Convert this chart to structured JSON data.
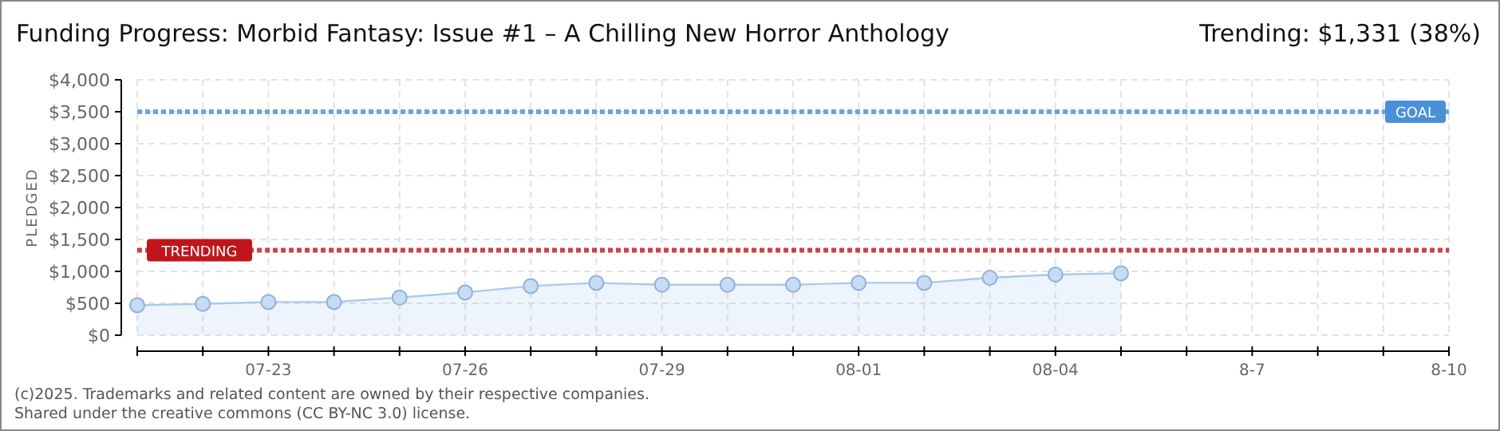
{
  "chart_data": {
    "type": "area",
    "title": "Funding Progress: Morbid Fantasy: Issue #1 – A Chilling New Horror Anthology",
    "subtitle": "Trending: $1,331 (38%)",
    "ylabel": "PLEDGED",
    "x": [
      "2025-07-21",
      "2025-07-22",
      "2025-07-23",
      "2025-07-24",
      "2025-07-25",
      "2025-07-26",
      "2025-07-27",
      "2025-07-28",
      "2025-07-29",
      "2025-07-30",
      "2025-07-31",
      "2025-08-01",
      "2025-08-02",
      "2025-08-03",
      "2025-08-04",
      "2025-08-05"
    ],
    "series": [
      {
        "color": "#a9c9ee",
        "values": [
          470,
          490,
          520,
          520,
          590,
          670,
          770,
          820,
          790,
          790,
          790,
          820,
          820,
          900,
          950,
          970
        ]
      }
    ],
    "xlim": [
      "2025-07-21",
      "2025-08-10"
    ],
    "xticks": [
      {
        "value": "2025-07-21",
        "label": null
      },
      {
        "value": "2025-07-22",
        "label": null
      },
      {
        "value": "2025-07-23",
        "label": "07-23"
      },
      {
        "value": "2025-07-24",
        "label": null
      },
      {
        "value": "2025-07-25",
        "label": null
      },
      {
        "value": "2025-07-26",
        "label": "07-26"
      },
      {
        "value": "2025-07-27",
        "label": null
      },
      {
        "value": "2025-07-28",
        "label": null
      },
      {
        "value": "2025-07-29",
        "label": "07-29"
      },
      {
        "value": "2025-07-30",
        "label": null
      },
      {
        "value": "2025-07-31",
        "label": null
      },
      {
        "value": "2025-08-01",
        "label": "08-01"
      },
      {
        "value": "2025-08-02",
        "label": null
      },
      {
        "value": "2025-08-03",
        "label": null
      },
      {
        "value": "2025-08-04",
        "label": "08-04"
      },
      {
        "value": "2025-08-05",
        "label": null
      },
      {
        "value": "2025-08-06",
        "label": null
      },
      {
        "value": "2025-08-07",
        "label": "8-7"
      },
      {
        "value": "2025-08-08",
        "label": null
      },
      {
        "value": "2025-08-09",
        "label": null
      },
      {
        "value": "2025-08-10",
        "label": "8-10"
      }
    ],
    "ylim": [
      0,
      4000
    ],
    "yticks": [
      {
        "value": 0,
        "label": "$0"
      },
      {
        "value": 500,
        "label": "$500"
      },
      {
        "value": 1000,
        "label": "$1,000"
      },
      {
        "value": 1500,
        "label": "$1,500"
      },
      {
        "value": 2000,
        "label": "$2,000"
      },
      {
        "value": 2500,
        "label": "$2,500"
      },
      {
        "value": 3000,
        "label": "$3,000"
      },
      {
        "value": 3500,
        "label": "$3,500"
      },
      {
        "value": 4000,
        "label": "$4,000"
      }
    ],
    "ref_lines": [
      {
        "axis": "y",
        "value": 3500,
        "label": "GOAL",
        "color": "#4a90d9",
        "line_style": "dotted"
      },
      {
        "axis": "y",
        "value": 1331,
        "label": "TRENDING",
        "color": "#c0161b",
        "line_style": "dotted"
      }
    ],
    "grid": true,
    "marker": "circle",
    "annotations": [
      "(c)2025. Trademarks and related content are owned by their respective companies.",
      "Shared under the creative commons (CC BY-NC 3.0) license."
    ]
  }
}
